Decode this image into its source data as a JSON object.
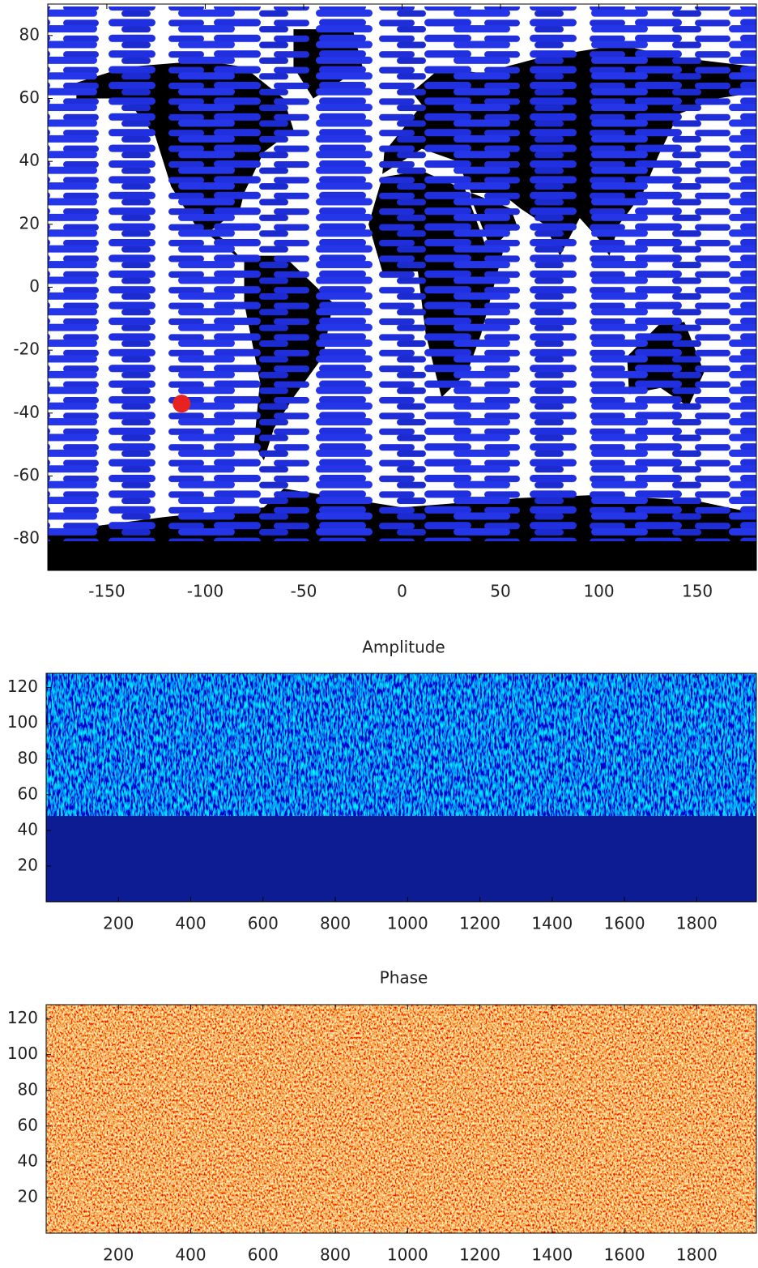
{
  "chart_data": [
    {
      "type": "map",
      "x": [
        -112
      ],
      "values": [
        -37
      ],
      "color": "#e8231f",
      "xlim": [
        -180,
        180
      ],
      "ylim": [
        -90,
        90
      ],
      "xticks": [
        -150,
        -100,
        -50,
        0,
        50,
        100,
        150
      ],
      "yticks": [
        -80,
        -60,
        -40,
        -20,
        0,
        20,
        40,
        60,
        80
      ]
    },
    {
      "type": "heatmap",
      "title": "Amplitude",
      "colormap": "jet",
      "xlim": [
        0,
        1965
      ],
      "ylim": [
        0,
        128
      ],
      "xticks": [
        200,
        400,
        600,
        800,
        1000,
        1200,
        1400,
        1600,
        1800
      ],
      "yticks": [
        20,
        40,
        60,
        80,
        100,
        120
      ]
    },
    {
      "type": "heatmap",
      "title": "Phase",
      "colormap": "hot",
      "xlim": [
        0,
        1965
      ],
      "ylim": [
        0,
        128
      ],
      "xticks": [
        200,
        400,
        600,
        800,
        1000,
        1200,
        1400,
        1600,
        1800
      ],
      "yticks": [
        20,
        40,
        60,
        80,
        100,
        120
      ]
    }
  ]
}
